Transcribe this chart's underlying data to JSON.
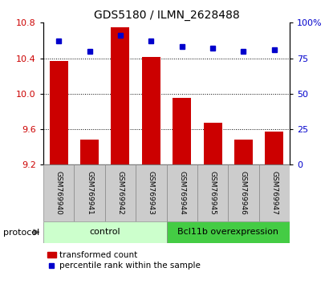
{
  "title": "GDS5180 / ILMN_2628488",
  "samples": [
    "GSM769940",
    "GSM769941",
    "GSM769942",
    "GSM769943",
    "GSM769944",
    "GSM769945",
    "GSM769946",
    "GSM769947"
  ],
  "transformed_count": [
    10.37,
    9.48,
    10.75,
    10.41,
    9.95,
    9.67,
    9.48,
    9.57
  ],
  "percentile_rank": [
    87,
    80,
    91,
    87,
    83,
    82,
    80,
    81
  ],
  "ylim_left": [
    9.2,
    10.8
  ],
  "ylim_right": [
    0,
    100
  ],
  "yticks_left": [
    9.2,
    9.6,
    10.0,
    10.4,
    10.8
  ],
  "yticks_right": [
    0,
    25,
    50,
    75,
    100
  ],
  "ytick_labels_right": [
    "0",
    "25",
    "50",
    "75",
    "100%"
  ],
  "bar_color": "#cc0000",
  "dot_color": "#0000cc",
  "bar_bottom": 9.2,
  "control_count": 4,
  "overexpression_count": 4,
  "control_label": "control",
  "overexpression_label": "Bcl11b overexpression",
  "protocol_label": "protocol",
  "legend_bar": "transformed count",
  "legend_dot": "percentile rank within the sample",
  "control_bg": "#ccffcc",
  "overexpression_bg": "#44cc44",
  "sample_bg": "#cccccc",
  "figsize": [
    4.15,
    3.54
  ],
  "dpi": 100
}
